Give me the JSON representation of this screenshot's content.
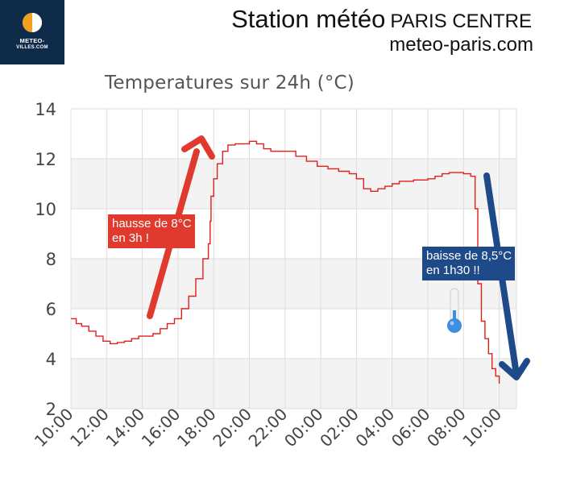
{
  "header": {
    "logo_line1": "METEO-",
    "logo_line2": "VILLES.COM",
    "station_title": "Station météo",
    "station_place": "PARIS CENTRE",
    "site": "meteo-paris.com"
  },
  "annotations": {
    "rise_line1": "hausse de 8°C",
    "rise_line2": "en 3h !",
    "drop_line1": "baisse de 8,5°C",
    "drop_line2": "en 1h30 !!"
  },
  "colors": {
    "line": "#e0201c",
    "rise_arrow": "#e03a2e",
    "drop_arrow": "#1f4a8a",
    "band": "#f3f3f3",
    "grid": "#dddddd",
    "logo_bg": "#0e2b4a"
  },
  "icons": {
    "thermometer": "thermometer-icon",
    "logo": "sun-moon-logo-icon"
  },
  "chart_data": {
    "type": "line",
    "title": "Temperatures sur 24h (°C)",
    "xlabel": "",
    "ylabel": "",
    "ylim": [
      2,
      14
    ],
    "yticks": [
      2,
      4,
      6,
      8,
      10,
      12,
      14
    ],
    "xtick_labels": [
      "10:00",
      "12:00",
      "14:00",
      "16:00",
      "18:00",
      "20:00",
      "22:00",
      "00:00",
      "02:00",
      "04:00",
      "06:00",
      "08:00",
      "10:00"
    ],
    "x_unit": "hours since 10:00",
    "grid": true,
    "series": [
      {
        "x": [
          0,
          0.3,
          0.6,
          1.0,
          1.4,
          1.8,
          2.2,
          2.6,
          3.0,
          3.4,
          3.8,
          4.2,
          4.6,
          5.0,
          5.4,
          5.8,
          6.2,
          6.6,
          7.0,
          7.4,
          7.7,
          7.8,
          7.85,
          8.0,
          8.2,
          8.5,
          8.8,
          9.2,
          9.6,
          10.0,
          10.4,
          10.8,
          11.2,
          11.6,
          12.0,
          12.6,
          13.2,
          13.8,
          14.4,
          15.0,
          15.6,
          16.0,
          16.4,
          16.8,
          17.2,
          17.6,
          18.0,
          18.4,
          18.8,
          19.2,
          19.6,
          20.0,
          20.4,
          20.8,
          21.2,
          21.6,
          22.0,
          22.4,
          22.6,
          22.65,
          22.8,
          23.0,
          23.2,
          23.4,
          23.6,
          23.8,
          24.0
        ],
        "y": [
          5.6,
          5.4,
          5.3,
          5.1,
          4.9,
          4.7,
          4.6,
          4.65,
          4.7,
          4.8,
          4.9,
          4.9,
          5.0,
          5.2,
          5.4,
          5.6,
          6.0,
          6.5,
          7.2,
          8.0,
          8.6,
          9.5,
          10.5,
          11.2,
          11.8,
          12.3,
          12.55,
          12.6,
          12.6,
          12.7,
          12.6,
          12.4,
          12.3,
          12.3,
          12.3,
          12.1,
          11.9,
          11.7,
          11.6,
          11.5,
          11.4,
          11.2,
          10.8,
          10.7,
          10.8,
          10.9,
          11.0,
          11.1,
          11.1,
          11.15,
          11.15,
          11.2,
          11.3,
          11.4,
          11.45,
          11.45,
          11.4,
          11.3,
          11.3,
          10.0,
          7.0,
          5.5,
          4.8,
          4.2,
          3.6,
          3.3,
          3.0
        ]
      }
    ]
  }
}
